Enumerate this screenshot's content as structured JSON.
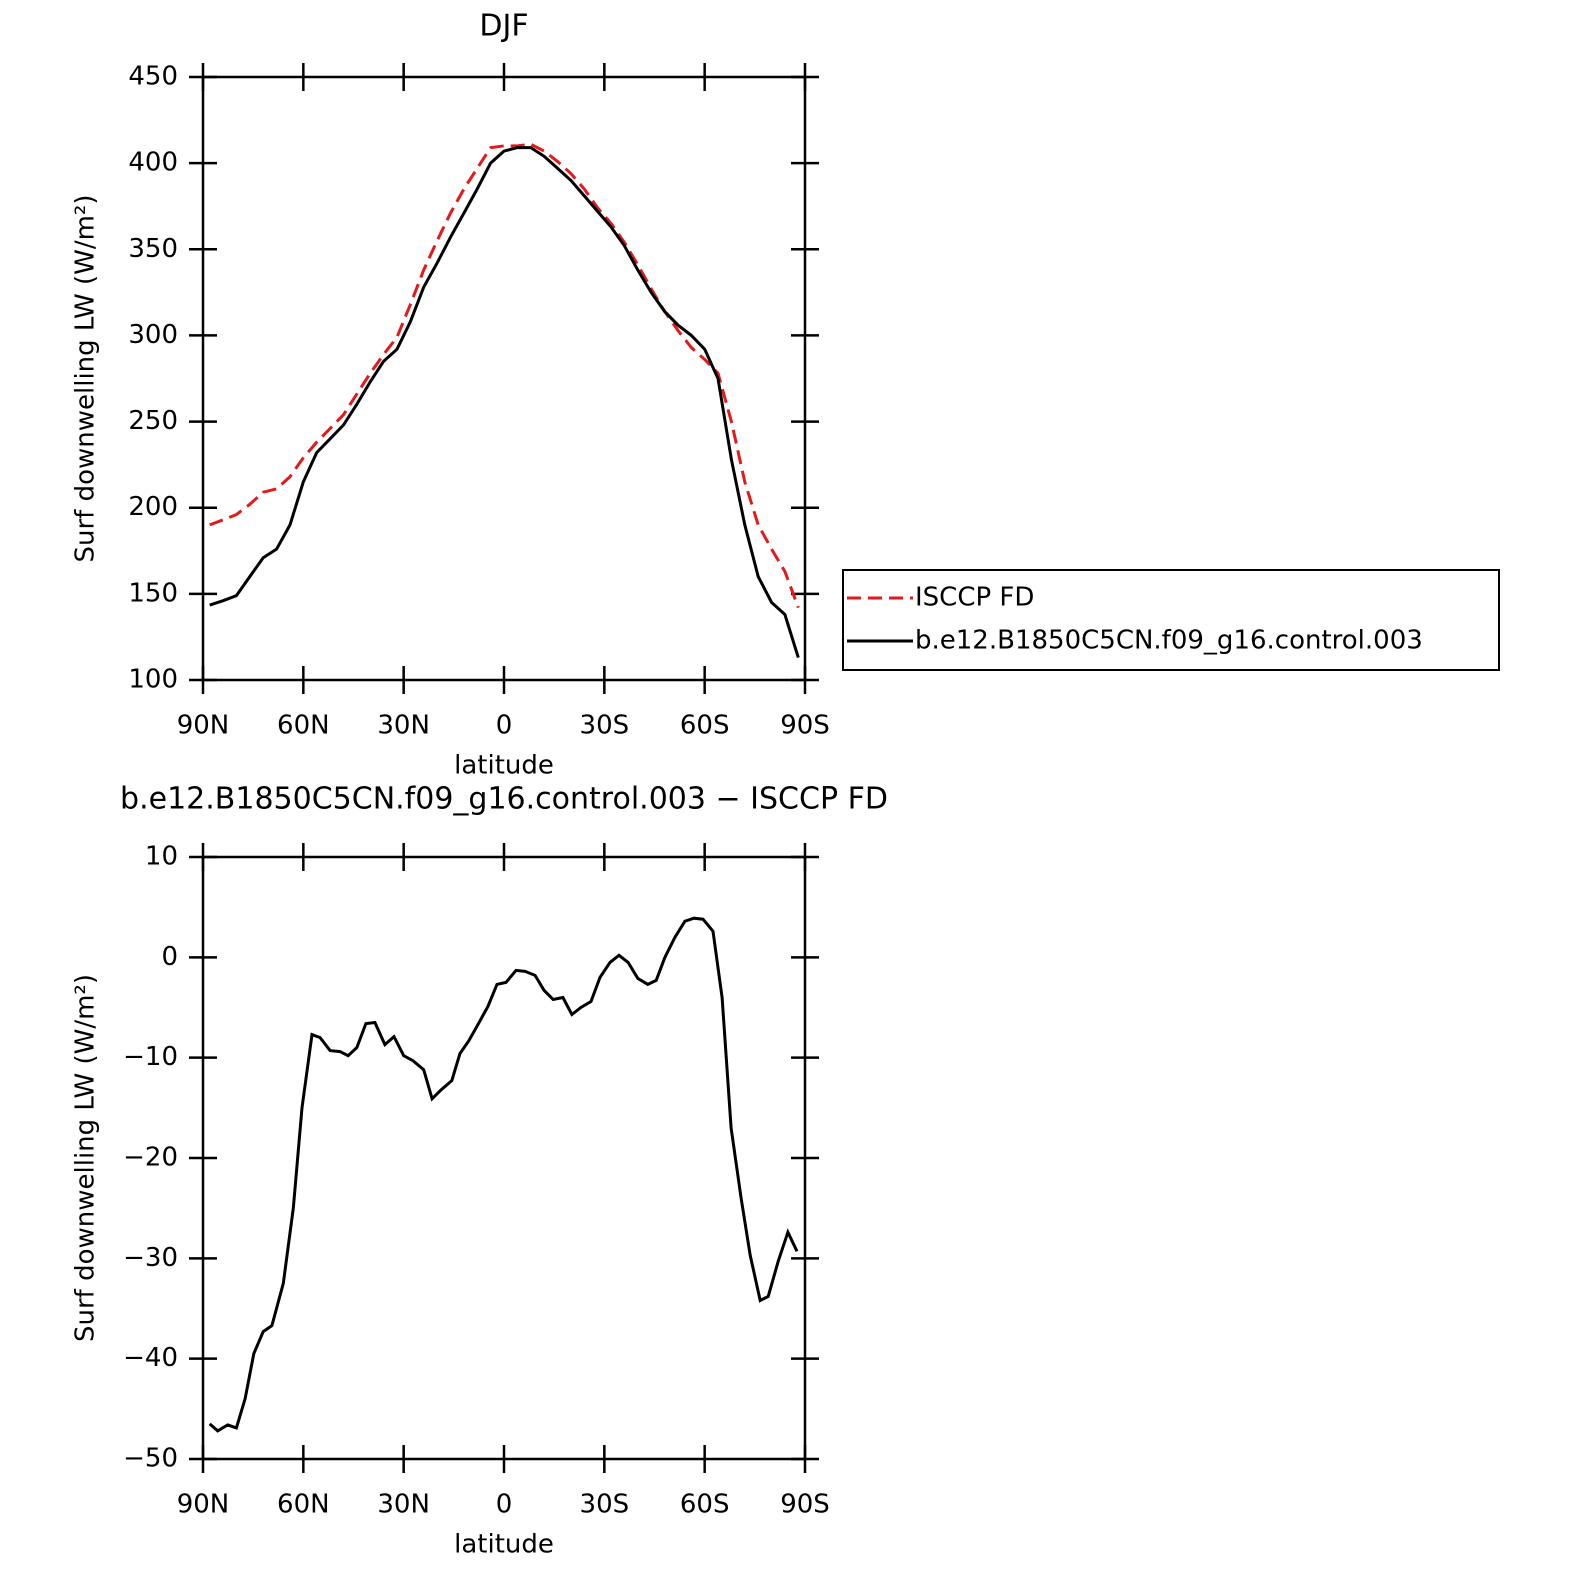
{
  "chart_data": [
    {
      "type": "line",
      "title": "DJF",
      "xlabel": "latitude",
      "ylabel": "Surf downwelling LW (W/m²)",
      "xlim": [
        90,
        -90
      ],
      "xticks": [
        {
          "value": 90,
          "label": "90N"
        },
        {
          "value": 60,
          "label": "60N"
        },
        {
          "value": 30,
          "label": "30N"
        },
        0,
        {
          "value": -30,
          "label": "30S"
        },
        {
          "value": -60,
          "label": "60S"
        },
        {
          "value": -90,
          "label": "90S"
        }
      ],
      "ylim": [
        100,
        450
      ],
      "yticks": [
        100,
        150,
        200,
        250,
        300,
        350,
        400,
        450
      ],
      "legend": "right",
      "x": [
        88,
        84,
        80,
        76,
        72,
        68,
        64,
        60,
        56,
        52,
        48,
        44,
        40,
        36,
        32,
        28,
        24,
        20,
        16,
        12,
        8,
        4,
        0,
        -4,
        -8,
        -12,
        -16,
        -20,
        -24,
        -28,
        -32,
        -36,
        -40,
        -44,
        -48,
        -52,
        -56,
        -60,
        -64,
        -68,
        -72,
        -76,
        -80,
        -84,
        -88
      ],
      "series": [
        {
          "name": "ISCCP FD",
          "color": "#e31a1c",
          "style": "dashed",
          "values": [
            190,
            193,
            196,
            202,
            209,
            211,
            218,
            229,
            238,
            246,
            254,
            266,
            278,
            289,
            299,
            318,
            338,
            355,
            371,
            385,
            397,
            409,
            410,
            410,
            411,
            407,
            401,
            394,
            385,
            374,
            365,
            354,
            341,
            327,
            314,
            303,
            293,
            286,
            278,
            250,
            215,
            190,
            176,
            163,
            142
          ]
        },
        {
          "name": "b.e12.B1850C5CN.f09_g16.control.003",
          "color": "#000000",
          "style": "solid",
          "values": [
            143.5,
            146,
            149,
            160,
            171,
            176,
            190,
            215,
            232,
            240,
            248,
            260,
            273,
            285,
            292,
            308,
            328,
            342,
            357,
            371,
            385,
            400,
            407,
            409,
            409,
            404,
            397,
            390,
            381,
            372,
            363,
            352,
            338,
            325,
            314,
            306,
            300,
            292,
            275,
            228,
            190,
            160,
            145,
            138,
            113
          ]
        }
      ]
    },
    {
      "type": "line",
      "title": "b.e12.B1850C5CN.f09_g16.control.003 − ISCCP FD",
      "xlabel": "latitude",
      "ylabel": "Surf downwelling LW (W/m²)",
      "xlim": [
        90,
        -90
      ],
      "xticks": [
        {
          "value": 90,
          "label": "90N"
        },
        {
          "value": 60,
          "label": "60N"
        },
        {
          "value": 30,
          "label": "30N"
        },
        0,
        {
          "value": -30,
          "label": "30S"
        },
        {
          "value": -60,
          "label": "60S"
        },
        {
          "value": -90,
          "label": "90S"
        }
      ],
      "ylim": [
        -50,
        10
      ],
      "yticks": [
        {
          "value": -50,
          "label": "−50"
        },
        {
          "value": -40,
          "label": "−40"
        },
        {
          "value": -30,
          "label": "−30"
        },
        {
          "value": -20,
          "label": "−20"
        },
        {
          "value": -10,
          "label": "−10"
        },
        0,
        10
      ],
      "x": [
        88,
        85.6,
        82.6,
        80,
        77.4,
        74.8,
        72,
        69.4,
        66,
        63,
        60.4,
        57.4,
        55,
        52,
        49,
        46.6,
        44,
        41.3,
        38.6,
        35.6,
        32.9,
        30,
        27.2,
        24,
        21.5,
        18.8,
        15.6,
        13.2,
        10.5,
        7.8,
        4.8,
        2.1,
        -0.6,
        -3.6,
        -6.3,
        -9.3,
        -12,
        -14.7,
        -17.6,
        -20.3,
        -23,
        -26,
        -28.7,
        -31.7,
        -34.4,
        -37.1,
        -40,
        -43,
        -45.5,
        -48.1,
        -51.1,
        -54.1,
        -56.8,
        -59.5,
        -62.5,
        -65.2,
        -67.9,
        -70.9,
        -73.6,
        -76.6,
        -79,
        -82,
        -84.9,
        -87.6
      ],
      "series": [
        {
          "color": "#000000",
          "style": "solid",
          "values": [
            -46.5,
            -47.2,
            -46.6,
            -46.9,
            -44,
            -39.5,
            -37.3,
            -36.7,
            -32.5,
            -25,
            -15,
            -7.7,
            -8,
            -9.3,
            -9.4,
            -9.8,
            -9,
            -6.6,
            -6.5,
            -8.7,
            -7.9,
            -9.8,
            -10.3,
            -11.2,
            -14.1,
            -13.2,
            -12.3,
            -9.6,
            -8.3,
            -6.7,
            -4.9,
            -2.7,
            -2.5,
            -1.3,
            -1.4,
            -1.8,
            -3.3,
            -4.2,
            -4,
            -5.7,
            -5,
            -4.4,
            -2,
            -0.5,
            0.2,
            -0.5,
            -2.1,
            -2.7,
            -2.3,
            0,
            2,
            3.6,
            3.9,
            3.8,
            2.6,
            -4,
            -17,
            -24,
            -29.7,
            -34.2,
            -33.8,
            -30.3,
            -27.4,
            -29.3
          ]
        }
      ]
    }
  ]
}
